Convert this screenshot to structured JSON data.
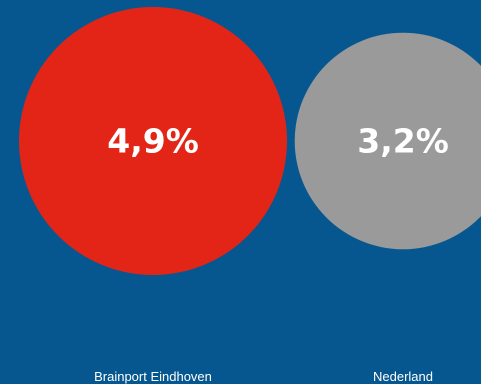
{
  "chart_data": {
    "type": "bubble",
    "categories": [
      "Brainport Eindhoven",
      "Nederland"
    ],
    "values": [
      4.9,
      3.2
    ],
    "value_labels": [
      "4,9%",
      "3,2%"
    ],
    "colors": [
      "#e32517",
      "#9a9a9a"
    ],
    "unit": "%",
    "legend": "none",
    "grid": false
  },
  "colors": {
    "background": "#06578f",
    "text": "#ffffff"
  }
}
